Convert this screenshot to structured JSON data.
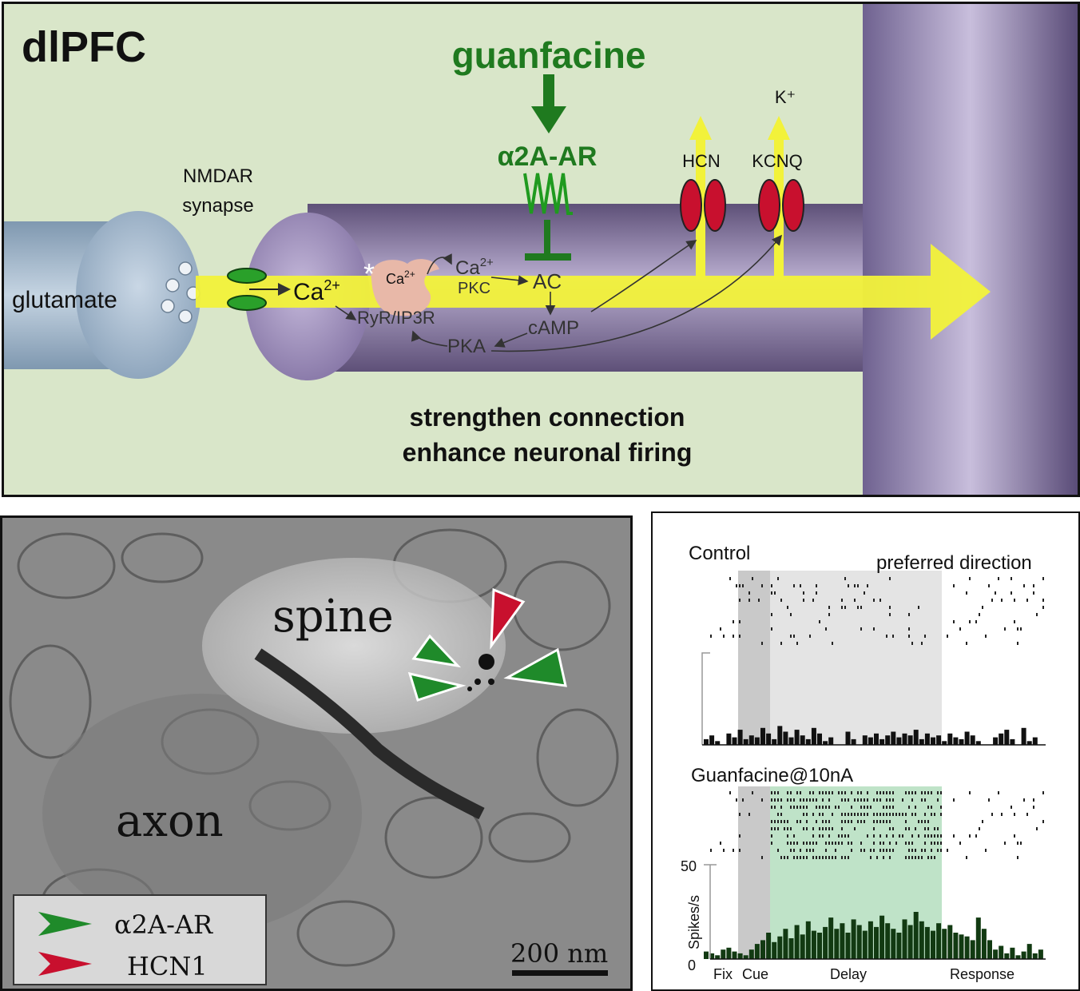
{
  "top_panel": {
    "region_label": "dlPFC",
    "drug_label": "guanfacine",
    "receptor_label": "α2A-AR",
    "k_ion": "K⁺",
    "hcn_label": "HCN",
    "kcnq_label": "KCNQ",
    "nmdar_label_line1": "NMDAR",
    "nmdar_label_line2": "synapse",
    "glutamate_label": "glutamate",
    "ca_main": "Ca",
    "ca_main_sup": "2+",
    "ca_small": "Ca",
    "ca_small_sup": "2+",
    "ca_pkc": "Ca",
    "ca_pkc_sup": "2+",
    "pkc_label": "PKC",
    "ac_label": "AC",
    "camp_label": "cAMP",
    "pka_label": "PKA",
    "ryr_label": "RyR/IP3R",
    "asterisk": "*",
    "outcome_line1": "strengthen connection",
    "outcome_line2": "enhance neuronal firing",
    "colors": {
      "background": "#d9e6c9",
      "guanfacine_green": "#1f7a1f",
      "channel_red": "#c8102e",
      "yellow_signal": "#f5f542",
      "dendrite_purple": "#8a7ca8",
      "presynaptic_blue": "#9fb4c8"
    }
  },
  "em_panel": {
    "spine_label": "spine",
    "axon_label": "axon",
    "scale_bar_label": "200 nm",
    "legend": [
      {
        "label": "α2A-AR",
        "color": "#1f8a2a",
        "icon": "green-arrowhead-icon"
      },
      {
        "label": "HCN1",
        "color": "#c8102e",
        "icon": "red-arrowhead-icon"
      }
    ]
  },
  "raster_panel": {
    "control_label": "Control",
    "preferred_label": "preferred direction",
    "guanfacine_label": "Guanfacine@10nA",
    "ylabel": "Spikes/s",
    "ytick_50": "50",
    "ytick_0": "0",
    "epochs": [
      "Fix",
      "Cue",
      "Delay",
      "Response"
    ]
  },
  "chart_data": [
    {
      "type": "bar",
      "title": "Control",
      "subtitle": "preferred direction",
      "ylabel": "Spikes/s",
      "ylim": [
        0,
        50
      ],
      "epochs": [
        "Fix",
        "Cue",
        "Delay",
        "Response"
      ],
      "bin_count": 60,
      "values": [
        3,
        5,
        2,
        0,
        6,
        4,
        8,
        3,
        5,
        4,
        9,
        6,
        3,
        10,
        7,
        4,
        8,
        5,
        3,
        9,
        6,
        2,
        4,
        0,
        0,
        7,
        3,
        0,
        5,
        4,
        6,
        3,
        5,
        7,
        4,
        6,
        5,
        8,
        3,
        6,
        4,
        5,
        2,
        6,
        4,
        3,
        7,
        5,
        2,
        0,
        0,
        4,
        6,
        8,
        3,
        0,
        9,
        2,
        4,
        0
      ]
    },
    {
      "type": "bar",
      "title": "Guanfacine@10nA",
      "ylabel": "Spikes/s",
      "ylim": [
        0,
        50
      ],
      "epochs": [
        "Fix",
        "Cue",
        "Delay",
        "Response"
      ],
      "bin_count": 60,
      "values": [
        4,
        3,
        2,
        5,
        6,
        4,
        3,
        2,
        5,
        8,
        10,
        14,
        9,
        12,
        16,
        11,
        18,
        13,
        20,
        15,
        14,
        17,
        22,
        16,
        19,
        14,
        21,
        18,
        15,
        20,
        17,
        23,
        19,
        16,
        14,
        21,
        18,
        25,
        20,
        17,
        15,
        19,
        16,
        18,
        14,
        13,
        12,
        10,
        22,
        16,
        10,
        5,
        7,
        3,
        6,
        2,
        4,
        8,
        3,
        5
      ]
    }
  ]
}
